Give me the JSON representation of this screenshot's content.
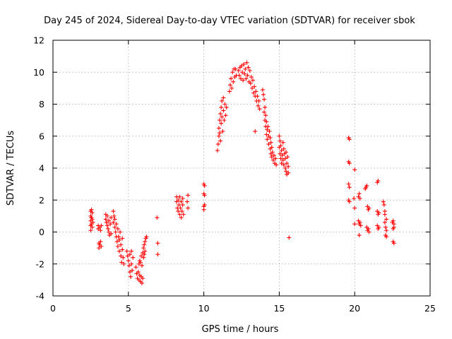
{
  "chart_data": {
    "type": "scatter",
    "title": "Day 245 of 2024, Sidereal Day-to-day VTEC variation (SDTVAR) for receiver sbok",
    "xlabel": "GPS time / hours",
    "ylabel": "SDTVAR / TECUs",
    "xlim": [
      0,
      25
    ],
    "ylim": [
      -4,
      12
    ],
    "xticks": [
      0,
      5,
      10,
      15,
      20,
      25
    ],
    "yticks": [
      -4,
      -2,
      0,
      2,
      4,
      6,
      8,
      10,
      12
    ],
    "grid": true,
    "marker": "plus",
    "marker_color": "#ff0000",
    "series": [
      {
        "name": "SDTVAR",
        "points": [
          [
            2.5,
            1.3
          ],
          [
            2.5,
            1.0
          ],
          [
            2.5,
            0.7
          ],
          [
            2.5,
            0.4
          ],
          [
            2.5,
            0.1
          ],
          [
            2.55,
            1.4
          ],
          [
            2.55,
            0.9
          ],
          [
            2.55,
            0.5
          ],
          [
            2.6,
            1.2
          ],
          [
            2.6,
            0.8
          ],
          [
            2.6,
            0.3
          ],
          [
            2.65,
            0.6
          ],
          [
            3.0,
            0.4
          ],
          [
            3.0,
            0.2
          ],
          [
            3.05,
            -0.7
          ],
          [
            3.05,
            -1.0
          ],
          [
            3.1,
            0.3
          ],
          [
            3.1,
            -0.8
          ],
          [
            3.15,
            0.1
          ],
          [
            3.15,
            -0.6
          ],
          [
            3.2,
            -0.9
          ],
          [
            3.2,
            0.4
          ],
          [
            3.5,
            1.1
          ],
          [
            3.5,
            0.8
          ],
          [
            3.55,
            0.6
          ],
          [
            3.6,
            0.4
          ],
          [
            3.6,
            1.0
          ],
          [
            3.65,
            0.2
          ],
          [
            3.7,
            0.0
          ],
          [
            3.7,
            0.7
          ],
          [
            3.75,
            -0.2
          ],
          [
            3.8,
            0.5
          ],
          [
            3.85,
            0.9
          ],
          [
            3.85,
            -0.1
          ],
          [
            4.0,
            1.3
          ],
          [
            4.0,
            0.6
          ],
          [
            4.05,
            1.0
          ],
          [
            4.1,
            0.3
          ],
          [
            4.1,
            0.8
          ],
          [
            4.15,
            0.0
          ],
          [
            4.2,
            -0.3
          ],
          [
            4.2,
            0.5
          ],
          [
            4.25,
            -0.6
          ],
          [
            4.3,
            0.2
          ],
          [
            4.3,
            -0.9
          ],
          [
            4.35,
            -0.3
          ],
          [
            4.4,
            -1.2
          ],
          [
            4.4,
            -0.5
          ],
          [
            4.45,
            0.0
          ],
          [
            4.5,
            -1.5
          ],
          [
            4.5,
            -0.8
          ],
          [
            4.55,
            -1.9
          ],
          [
            4.6,
            -1.1
          ],
          [
            4.6,
            -0.4
          ],
          [
            4.65,
            -1.6
          ],
          [
            4.7,
            -2.0
          ],
          [
            4.9,
            -1.2
          ],
          [
            4.95,
            -1.5
          ],
          [
            5.0,
            -1.8
          ],
          [
            5.05,
            -2.1
          ],
          [
            5.1,
            -2.5
          ],
          [
            5.1,
            -1.4
          ],
          [
            5.15,
            -2.8
          ],
          [
            5.2,
            -2.0
          ],
          [
            5.2,
            -1.2
          ],
          [
            5.25,
            -2.4
          ],
          [
            5.3,
            -1.6
          ],
          [
            5.5,
            -2.2
          ],
          [
            5.55,
            -2.6
          ],
          [
            5.6,
            -2.9
          ],
          [
            5.65,
            -2.5
          ],
          [
            5.7,
            -3.0
          ],
          [
            5.75,
            -2.7
          ],
          [
            5.8,
            -3.1
          ],
          [
            5.85,
            -2.8
          ],
          [
            5.9,
            -3.2
          ],
          [
            5.95,
            -2.9
          ],
          [
            5.7,
            -2.0
          ],
          [
            5.75,
            -1.8
          ],
          [
            5.8,
            -1.9
          ],
          [
            5.85,
            -1.5
          ],
          [
            5.9,
            -2.1
          ],
          [
            5.95,
            -1.3
          ],
          [
            6.0,
            -1.6
          ],
          [
            6.0,
            -1.0
          ],
          [
            6.05,
            -1.4
          ],
          [
            6.05,
            -0.8
          ],
          [
            6.1,
            -0.6
          ],
          [
            6.1,
            -1.2
          ],
          [
            6.15,
            -0.4
          ],
          [
            6.2,
            -0.3
          ],
          [
            6.9,
            0.9
          ],
          [
            6.95,
            -0.7
          ],
          [
            6.95,
            -1.4
          ],
          [
            8.2,
            2.2
          ],
          [
            8.2,
            1.9
          ],
          [
            8.25,
            1.5
          ],
          [
            8.3,
            2.0
          ],
          [
            8.3,
            1.3
          ],
          [
            8.35,
            1.7
          ],
          [
            8.4,
            2.2
          ],
          [
            8.4,
            1.1
          ],
          [
            8.45,
            1.5
          ],
          [
            8.5,
            1.9
          ],
          [
            8.5,
            0.9
          ],
          [
            8.55,
            1.3
          ],
          [
            8.6,
            1.7
          ],
          [
            8.6,
            2.1
          ],
          [
            8.65,
            1.1
          ],
          [
            8.9,
            1.9
          ],
          [
            8.95,
            2.3
          ],
          [
            8.95,
            1.5
          ],
          [
            10.0,
            3.0
          ],
          [
            10.0,
            2.4
          ],
          [
            10.0,
            1.6
          ],
          [
            10.0,
            1.4
          ],
          [
            10.05,
            2.9
          ],
          [
            10.05,
            2.3
          ],
          [
            10.05,
            1.7
          ],
          [
            10.9,
            5.1
          ],
          [
            10.95,
            5.5
          ],
          [
            11.0,
            6.0
          ],
          [
            11.0,
            6.5
          ],
          [
            11.05,
            7.0
          ],
          [
            11.05,
            6.2
          ],
          [
            11.1,
            7.4
          ],
          [
            11.1,
            5.7
          ],
          [
            11.15,
            7.8
          ],
          [
            11.15,
            6.8
          ],
          [
            11.2,
            8.2
          ],
          [
            11.2,
            7.2
          ],
          [
            11.25,
            6.3
          ],
          [
            11.3,
            8.4
          ],
          [
            11.3,
            7.6
          ],
          [
            11.35,
            7.0
          ],
          [
            11.4,
            8.0
          ],
          [
            11.45,
            7.3
          ],
          [
            11.5,
            7.8
          ],
          [
            11.7,
            8.8
          ],
          [
            11.75,
            9.2
          ],
          [
            11.8,
            9.6
          ],
          [
            11.85,
            9.0
          ],
          [
            11.9,
            10.0
          ],
          [
            11.95,
            9.4
          ],
          [
            12.0,
            10.2
          ],
          [
            12.05,
            9.7
          ],
          [
            12.1,
            10.2
          ],
          [
            12.15,
            9.8
          ],
          [
            12.3,
            10.1
          ],
          [
            12.35,
            9.8
          ],
          [
            12.4,
            10.3
          ],
          [
            12.45,
            9.6
          ],
          [
            12.5,
            10.4
          ],
          [
            12.55,
            10.0
          ],
          [
            12.6,
            9.5
          ],
          [
            12.65,
            10.5
          ],
          [
            12.7,
            9.9
          ],
          [
            12.75,
            10.2
          ],
          [
            12.8,
            9.6
          ],
          [
            12.85,
            10.6
          ],
          [
            12.9,
            9.8
          ],
          [
            12.95,
            10.3
          ],
          [
            13.0,
            9.4
          ],
          [
            13.05,
            10.1
          ],
          [
            13.1,
            9.3
          ],
          [
            13.15,
            9.7
          ],
          [
            13.2,
            9.0
          ],
          [
            13.25,
            9.5
          ],
          [
            13.3,
            8.7
          ],
          [
            13.35,
            9.1
          ],
          [
            13.4,
            8.5
          ],
          [
            13.45,
            8.8
          ],
          [
            13.5,
            8.2
          ],
          [
            13.55,
            8.5
          ],
          [
            13.6,
            7.9
          ],
          [
            13.65,
            8.2
          ],
          [
            13.7,
            7.7
          ],
          [
            13.4,
            6.3
          ],
          [
            13.9,
            8.9
          ],
          [
            13.95,
            8.6
          ],
          [
            14.0,
            8.3
          ],
          [
            14.0,
            7.5
          ],
          [
            14.05,
            7.8
          ],
          [
            14.05,
            7.0
          ],
          [
            14.1,
            6.6
          ],
          [
            14.1,
            7.3
          ],
          [
            14.15,
            6.1
          ],
          [
            14.15,
            6.9
          ],
          [
            14.2,
            6.4
          ],
          [
            14.2,
            5.8
          ],
          [
            14.25,
            6.6
          ],
          [
            14.3,
            6.0
          ],
          [
            14.3,
            5.5
          ],
          [
            14.35,
            6.3
          ],
          [
            14.4,
            5.2
          ],
          [
            14.4,
            5.9
          ],
          [
            14.45,
            4.9
          ],
          [
            14.45,
            5.6
          ],
          [
            14.5,
            5.3
          ],
          [
            14.5,
            4.7
          ],
          [
            14.55,
            5.0
          ],
          [
            14.6,
            4.5
          ],
          [
            14.65,
            4.8
          ],
          [
            14.7,
            4.3
          ],
          [
            14.75,
            4.6
          ],
          [
            14.8,
            4.2
          ],
          [
            15.0,
            6.0
          ],
          [
            15.0,
            5.3
          ],
          [
            15.05,
            5.7
          ],
          [
            15.05,
            4.9
          ],
          [
            15.1,
            5.4
          ],
          [
            15.1,
            4.6
          ],
          [
            15.15,
            5.1
          ],
          [
            15.15,
            4.3
          ],
          [
            15.2,
            4.8
          ],
          [
            15.25,
            4.5
          ],
          [
            15.25,
            5.6
          ],
          [
            15.3,
            4.2
          ],
          [
            15.3,
            5.2
          ],
          [
            15.35,
            4.9
          ],
          [
            15.4,
            4.0
          ],
          [
            15.4,
            4.6
          ],
          [
            15.45,
            3.8
          ],
          [
            15.45,
            5.0
          ],
          [
            15.5,
            4.3
          ],
          [
            15.5,
            3.6
          ],
          [
            15.55,
            4.7
          ],
          [
            15.6,
            4.1
          ],
          [
            15.6,
            3.7
          ],
          [
            15.65,
            -0.35
          ],
          [
            19.6,
            5.9
          ],
          [
            19.65,
            5.8
          ],
          [
            19.6,
            4.4
          ],
          [
            19.65,
            4.3
          ],
          [
            19.6,
            3.0
          ],
          [
            19.65,
            2.8
          ],
          [
            19.6,
            2.0
          ],
          [
            19.65,
            1.9
          ],
          [
            20.0,
            3.9
          ],
          [
            19.95,
            2.1
          ],
          [
            20.0,
            1.5
          ],
          [
            20.0,
            0.5
          ],
          [
            20.25,
            2.2
          ],
          [
            20.3,
            2.4
          ],
          [
            20.35,
            2.1
          ],
          [
            20.25,
            0.7
          ],
          [
            20.3,
            0.5
          ],
          [
            20.35,
            0.6
          ],
          [
            20.4,
            0.4
          ],
          [
            20.3,
            -0.2
          ],
          [
            20.7,
            2.7
          ],
          [
            20.75,
            2.8
          ],
          [
            20.8,
            2.9
          ],
          [
            20.85,
            1.6
          ],
          [
            20.9,
            1.4
          ],
          [
            20.95,
            1.5
          ],
          [
            20.8,
            0.3
          ],
          [
            20.85,
            0.1
          ],
          [
            20.9,
            0.2
          ],
          [
            20.95,
            0.0
          ],
          [
            21.5,
            3.1
          ],
          [
            21.55,
            3.2
          ],
          [
            21.5,
            1.3
          ],
          [
            21.55,
            1.1
          ],
          [
            21.6,
            1.2
          ],
          [
            21.5,
            0.4
          ],
          [
            21.55,
            0.2
          ],
          [
            21.6,
            0.3
          ],
          [
            21.9,
            1.9
          ],
          [
            21.95,
            1.7
          ],
          [
            22.0,
            1.3
          ],
          [
            22.0,
            0.6
          ],
          [
            22.05,
            0.3
          ],
          [
            22.1,
            0.1
          ],
          [
            22.05,
            -0.2
          ],
          [
            22.1,
            -0.3
          ],
          [
            22.0,
            1.1
          ],
          [
            22.1,
            0.8
          ],
          [
            22.5,
            0.6
          ],
          [
            22.55,
            0.7
          ],
          [
            22.6,
            0.5
          ],
          [
            22.55,
            0.2
          ],
          [
            22.6,
            0.3
          ],
          [
            22.55,
            -0.6
          ],
          [
            22.6,
            -0.7
          ]
        ]
      }
    ]
  }
}
